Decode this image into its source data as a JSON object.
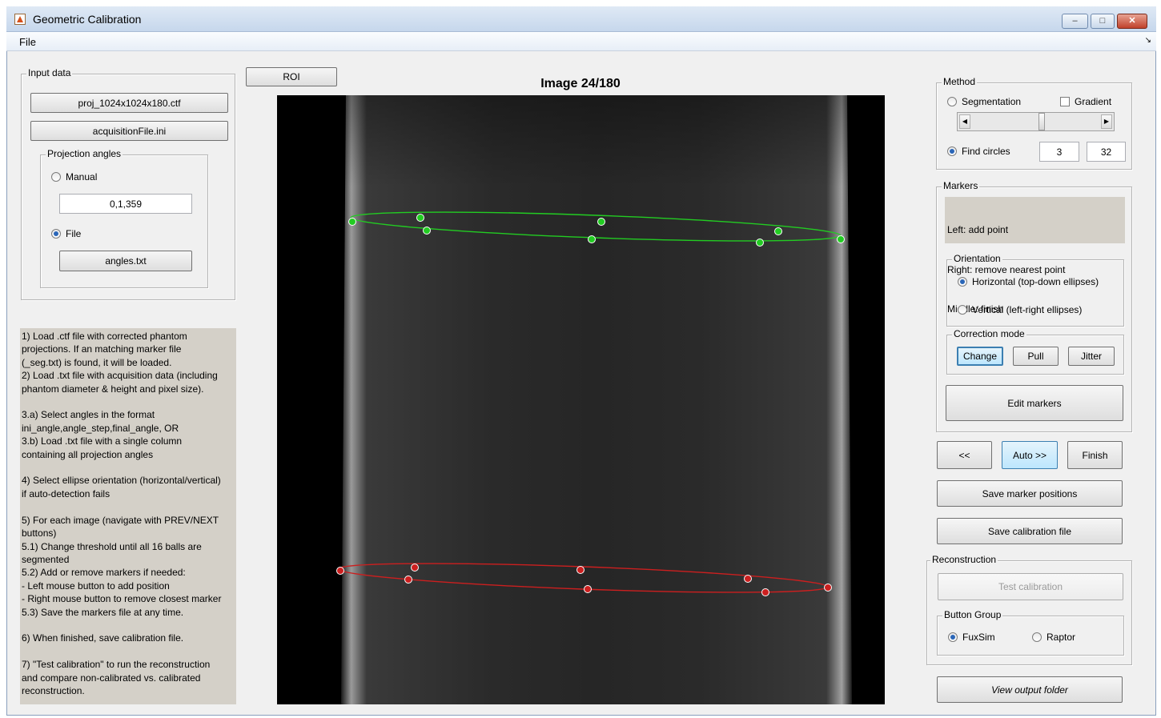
{
  "window": {
    "title": "Geometric Calibration",
    "controls": {
      "minimize": "–",
      "maximize": "□",
      "close": "✕"
    }
  },
  "menu": {
    "file": "File",
    "corner": "↘"
  },
  "input_data": {
    "title": "Input data",
    "ctf_button": "proj_1024x1024x180.ctf",
    "acq_button": "acquisitionFile.ini",
    "projection_angles": {
      "title": "Projection angles",
      "manual_label": "Manual",
      "manual_value": "0,1,359",
      "file_label": "File",
      "file_button": "angles.txt",
      "selected": "File"
    }
  },
  "instructions": "1) Load .ctf file with corrected phantom\nprojections. If an matching marker file\n(_seg.txt) is found, it will be loaded.\n2) Load .txt file with acquisition data (including\nphantom diameter & height and pixel size).\n\n3.a) Select angles in the format\nini_angle,angle_step,final_angle, OR\n3.b) Load .txt file with a single column\ncontaining all projection angles\n\n4) Select ellipse orientation (horizontal/vertical)\nif auto-detection fails\n\n5) For each image (navigate with PREV/NEXT\nbuttons)\n5.1) Change threshold until all 16 balls are\nsegmented\n5.2) Add or remove markers if needed:\n- Left mouse button to add position\n- Right mouse button to remove closest marker\n5.3) Save the markers file at any time.\n\n6) When finished, save calibration file.\n\n7) \"Test calibration\" to run the reconstruction\nand compare non-calibrated vs. calibrated\nreconstruction.",
  "roi_button": "ROI",
  "image": {
    "title": "Image 24/180",
    "marker_colors": {
      "top": "#22cc22",
      "bottom": "#cc1f1f"
    }
  },
  "method": {
    "title": "Method",
    "segmentation_label": "Segmentation",
    "gradient_label": "Gradient",
    "gradient_checked": false,
    "slider_position": 0.55,
    "find_circles_label": "Find circles",
    "find_circles_min": "3",
    "find_circles_max": "32",
    "selected": "Find circles"
  },
  "markers": {
    "title": "Markers",
    "help_lines": [
      "Left: add point",
      "Right: remove nearest point",
      "Middle: finish"
    ],
    "orientation": {
      "title": "Orientation",
      "horizontal_label": "Horizontal (top-down ellipses)",
      "vertical_label": "Vertical (left-right ellipses)",
      "selected": "Horizontal (top-down ellipses)"
    },
    "correction_mode": {
      "title": "Correction mode",
      "change": "Change",
      "pull": "Pull",
      "jitter": "Jitter",
      "active": "Change"
    },
    "edit_markers": "Edit markers"
  },
  "navigation": {
    "prev": "<<",
    "auto": "Auto >>",
    "finish": "Finish"
  },
  "save_marker_positions": "Save marker positions",
  "save_calibration_file": "Save calibration file",
  "reconstruction": {
    "title": "Reconstruction",
    "test_calibration": "Test calibration",
    "button_group": {
      "title": "Button Group",
      "fuxsim": "FuxSim",
      "raptor": "Raptor",
      "selected": "FuxSim"
    }
  },
  "view_output_folder": "View output folder"
}
